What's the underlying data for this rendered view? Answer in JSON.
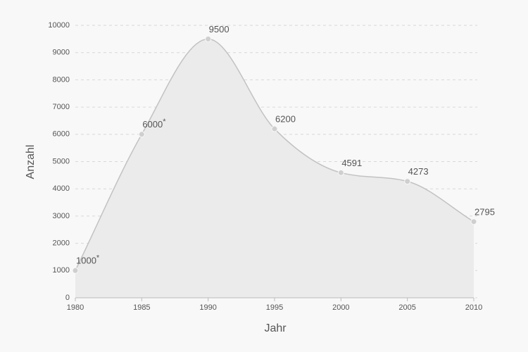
{
  "chart_data": {
    "type": "area",
    "x_label": "Jahr",
    "y_label": "Anzahl",
    "x": [
      1980,
      1985,
      1990,
      1995,
      2000,
      2005,
      2010
    ],
    "values": [
      1000,
      6000,
      9500,
      6200,
      4591,
      4273,
      2795
    ],
    "value_labels": [
      "1000*",
      "6000*",
      "9500",
      "6200",
      "4591",
      "4273",
      "2795"
    ],
    "color": "#c2c2c2",
    "fill": "#ebebeb",
    "xlim": [
      1980,
      2010
    ],
    "xticks": [
      1980,
      1985,
      1990,
      1995,
      2000,
      2005,
      2010
    ],
    "ylim": [
      0,
      10000
    ],
    "yticks": [
      0,
      1000,
      2000,
      3000,
      4000,
      5000,
      6000,
      7000,
      8000,
      9000,
      10000
    ],
    "grid": true
  }
}
